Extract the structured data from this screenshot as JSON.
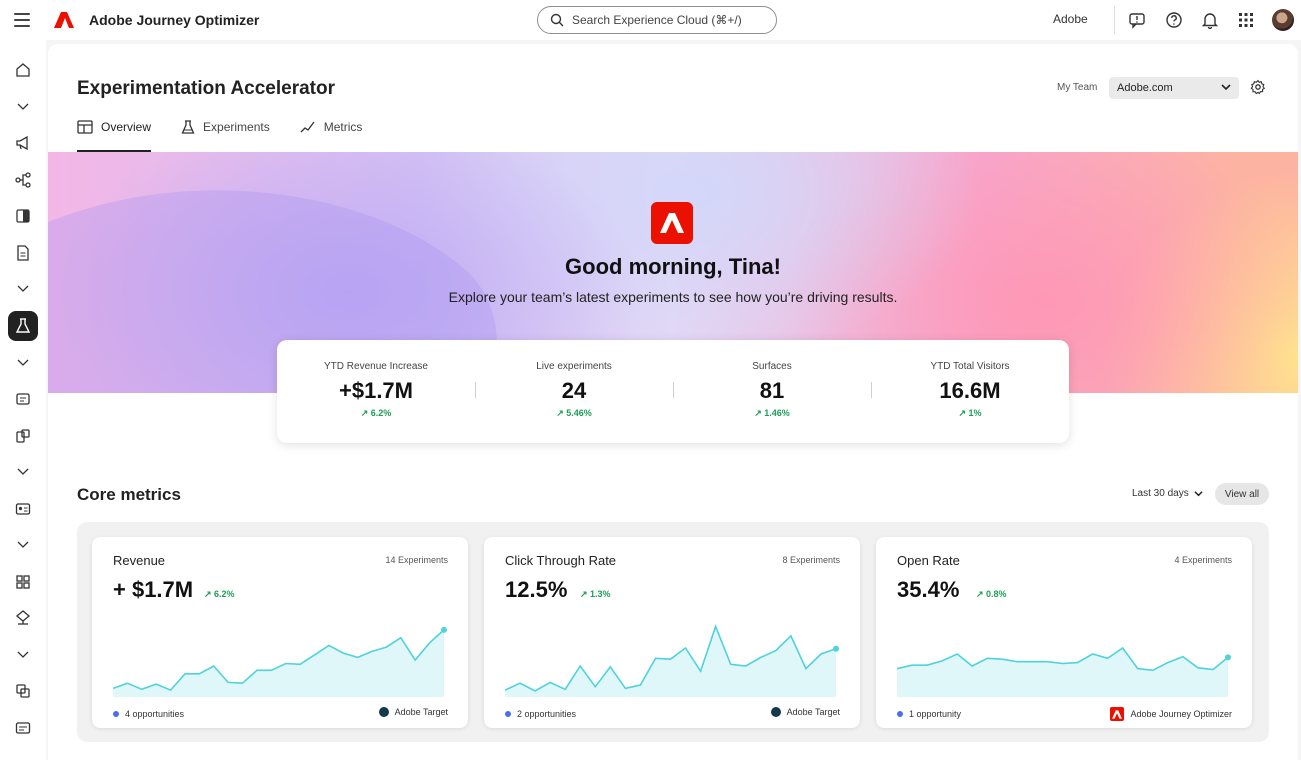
{
  "topbar": {
    "app_name": "Adobe Journey Optimizer",
    "search_placeholder": "Search Experience Cloud (⌘+/)",
    "org_name": "Adobe"
  },
  "page": {
    "title": "Experimentation Accelerator",
    "team_label": "My Team",
    "team_value": "Adobe.com"
  },
  "tabs": [
    {
      "label": "Overview",
      "selected": true
    },
    {
      "label": "Experiments",
      "selected": false
    },
    {
      "label": "Metrics",
      "selected": false
    }
  ],
  "hero": {
    "greeting": "Good morning, Tina!",
    "subtitle": "Explore your team’s latest experiments to see how you’re driving results."
  },
  "kpis": [
    {
      "label": "YTD Revenue Increase",
      "value": "+$1.7M",
      "delta": "6.2%"
    },
    {
      "label": "Live experiments",
      "value": "24",
      "delta": "5.46%"
    },
    {
      "label": "Surfaces",
      "value": "81",
      "delta": "1.46%"
    },
    {
      "label": "YTD Total Visitors",
      "value": "16.6M",
      "delta": "1%"
    }
  ],
  "core_metrics": {
    "title": "Core metrics",
    "range": "Last 30 days",
    "view_all": "View all",
    "cards": [
      {
        "title": "Revenue",
        "count": "14 Experiments",
        "value": "+ $1.7M",
        "delta": "6.2%",
        "opportunities": "4 opportunities",
        "source": "Adobe Target",
        "series": [
          0.1,
          0.16,
          0.09,
          0.15,
          0.08,
          0.27,
          0.27,
          0.36,
          0.17,
          0.16,
          0.31,
          0.31,
          0.39,
          0.38,
          0.49,
          0.6,
          0.51,
          0.46,
          0.53,
          0.58,
          0.69,
          0.43,
          0.63,
          0.78
        ]
      },
      {
        "title": "Click Through Rate",
        "count": "8 Experiments",
        "value": "12.5%",
        "delta": "1.3%",
        "opportunities": "2 opportunities",
        "source": "Adobe Target",
        "series": [
          0.08,
          0.16,
          0.07,
          0.17,
          0.09,
          0.36,
          0.12,
          0.35,
          0.1,
          0.14,
          0.45,
          0.44,
          0.57,
          0.3,
          0.82,
          0.38,
          0.36,
          0.46,
          0.54,
          0.71,
          0.33,
          0.5,
          0.56
        ]
      },
      {
        "title": "Open Rate",
        "count": "4 Experiments",
        "value": "35.4%",
        "delta": "0.8%",
        "opportunities": "1 opportunity",
        "source": "Adobe Journey Optimizer",
        "series": [
          0.33,
          0.37,
          0.37,
          0.42,
          0.5,
          0.36,
          0.45,
          0.44,
          0.41,
          0.41,
          0.41,
          0.39,
          0.4,
          0.5,
          0.45,
          0.57,
          0.33,
          0.31,
          0.4,
          0.47,
          0.34,
          0.32,
          0.46
        ]
      }
    ]
  },
  "colors": {
    "accent_red": "#eb1000",
    "positive_green": "#1b9e55",
    "chart_line": "#4fd2dc",
    "chart_fill": "#dff7f9",
    "opportunity_dot": "#4c6ef0"
  }
}
